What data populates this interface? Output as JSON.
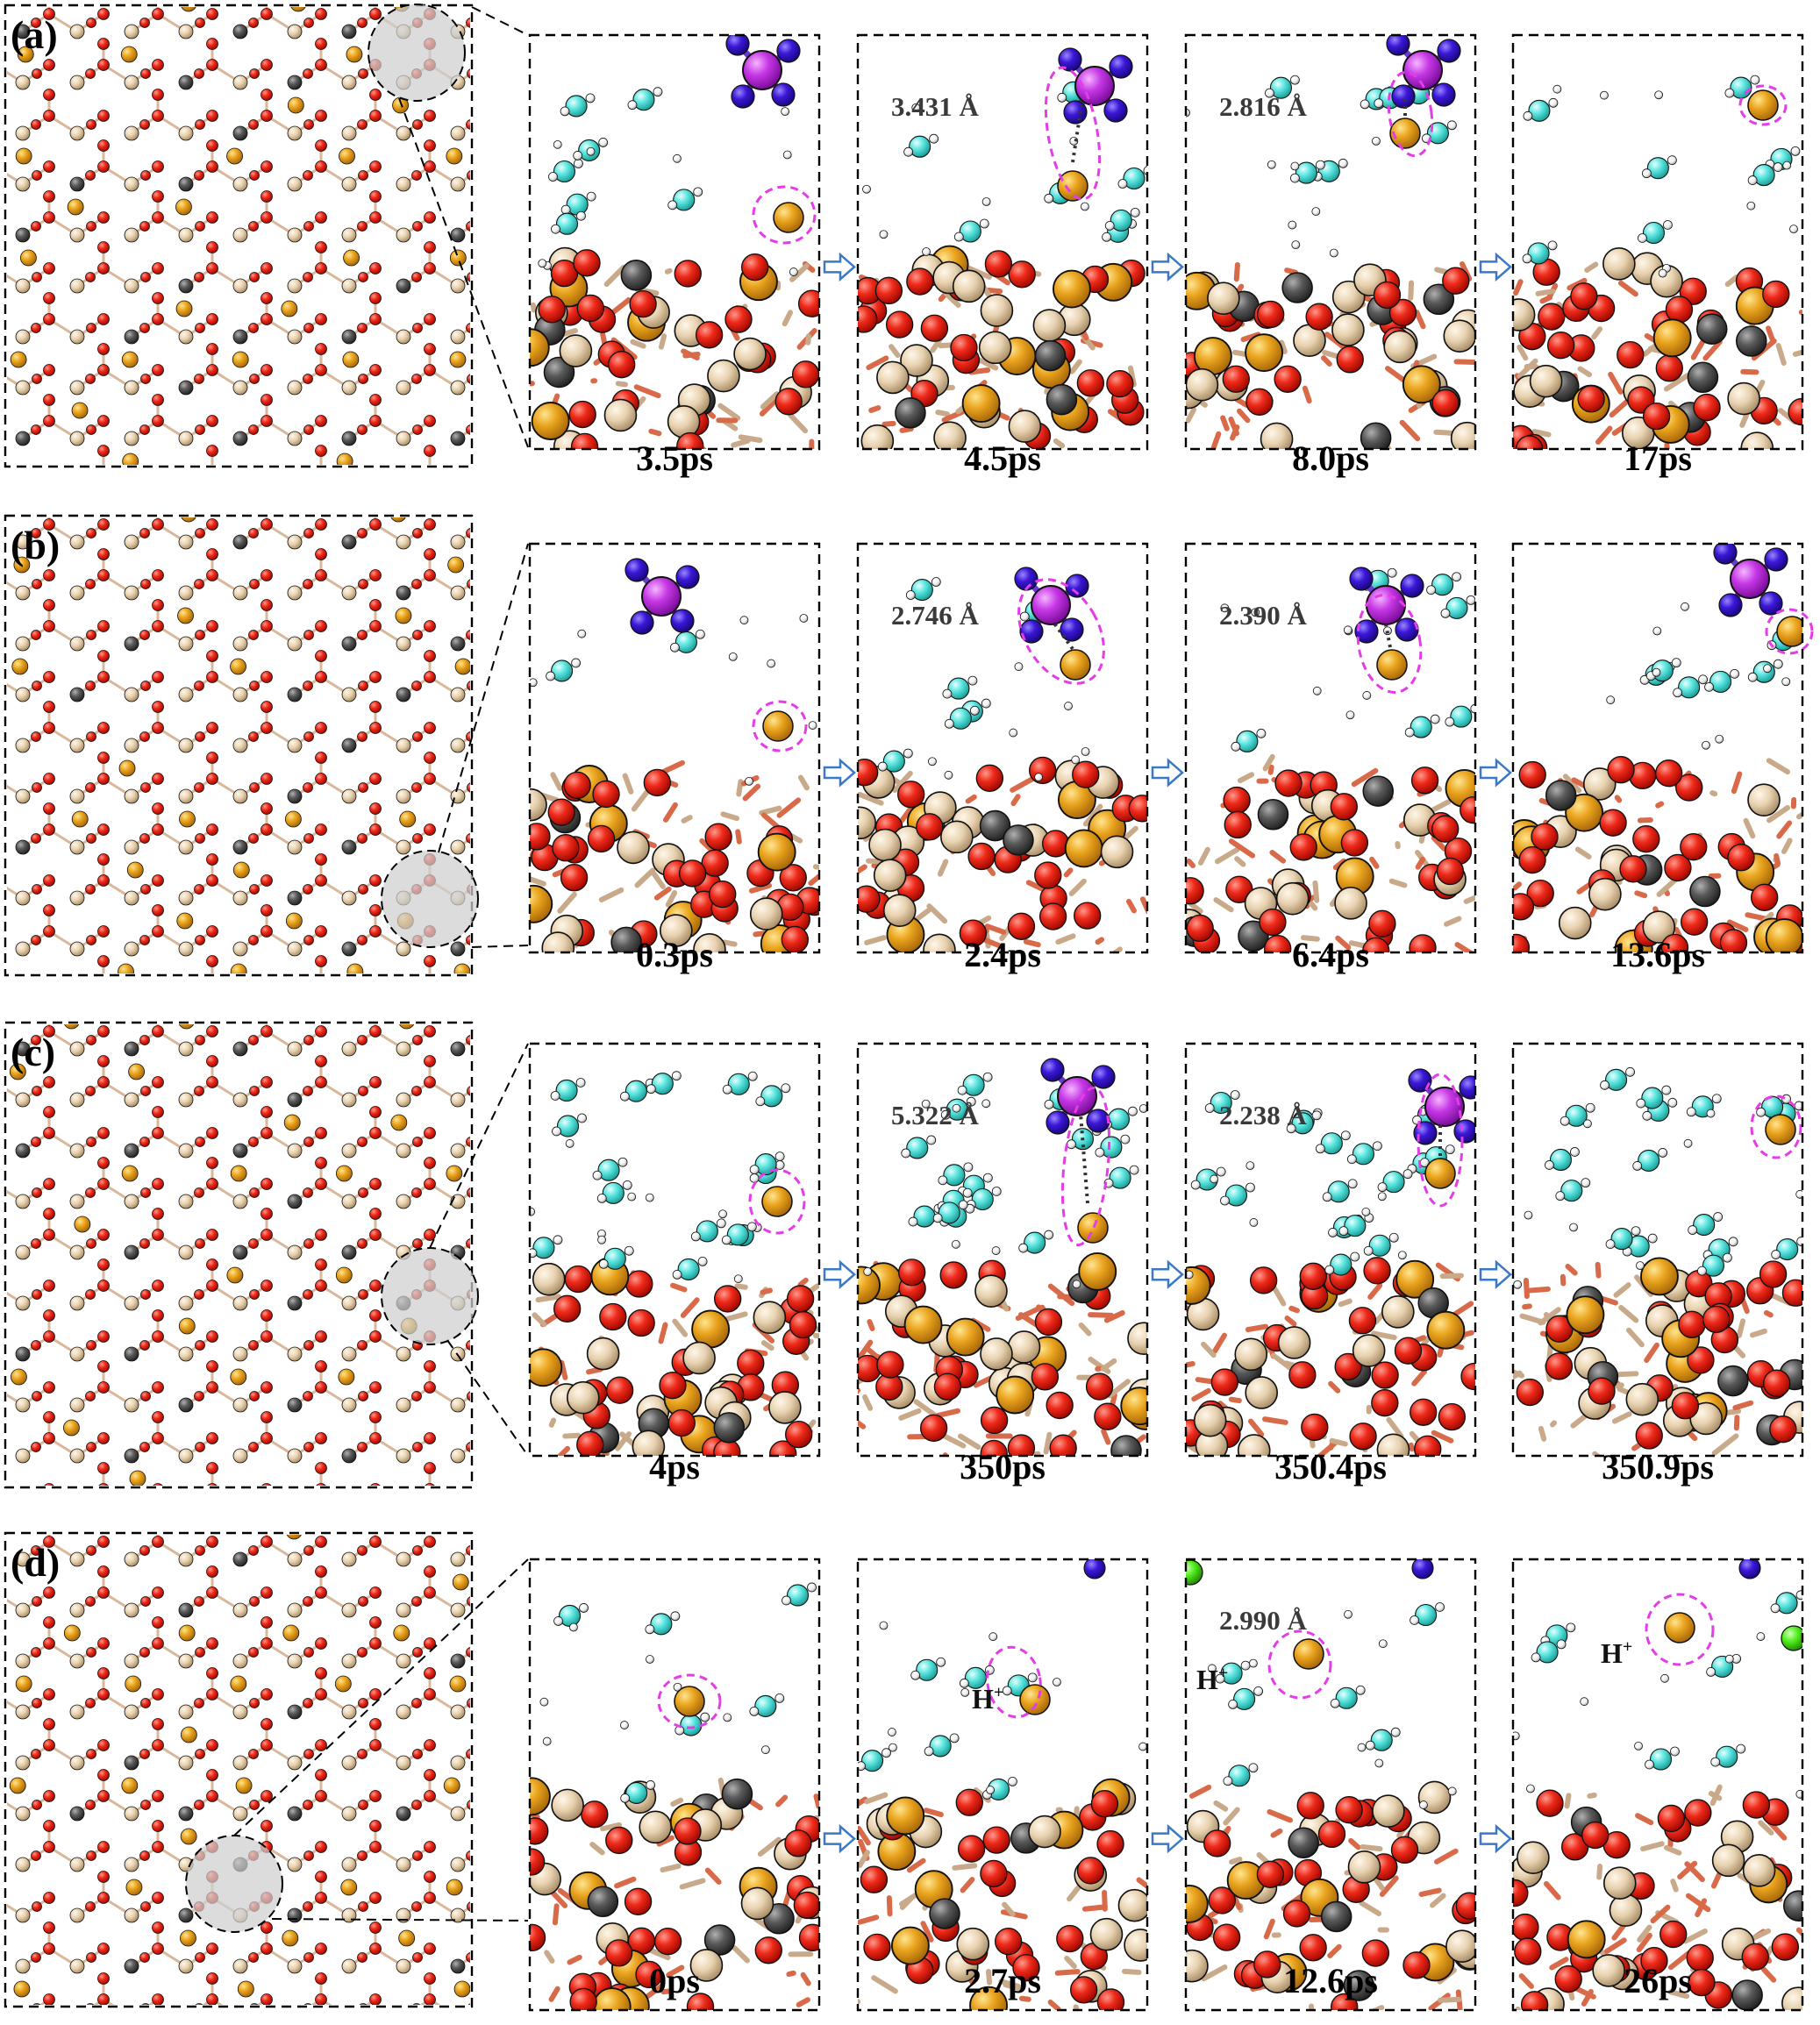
{
  "panels": [
    {
      "label": "(a)",
      "frames": [
        {
          "time": "3.5ps",
          "distance": ""
        },
        {
          "time": "4.5ps",
          "distance": "3.431 Å"
        },
        {
          "time": "8.0ps",
          "distance": "2.816 Å"
        },
        {
          "time": "17ps",
          "distance": ""
        }
      ]
    },
    {
      "label": "(b)",
      "frames": [
        {
          "time": "0.3ps",
          "distance": ""
        },
        {
          "time": "2.4ps",
          "distance": "2.746 Å"
        },
        {
          "time": "6.4ps",
          "distance": "2.390 Å"
        },
        {
          "time": "13.6ps",
          "distance": ""
        }
      ]
    },
    {
      "label": "(c)",
      "frames": [
        {
          "time": "4ps",
          "distance": ""
        },
        {
          "time": "350ps",
          "distance": "5.322 Å"
        },
        {
          "time": "350.4ps",
          "distance": "2.238 Å"
        },
        {
          "time": "350.9ps",
          "distance": ""
        }
      ]
    },
    {
      "label": "(d)",
      "frames": [
        {
          "time": "0ps",
          "distance": ""
        },
        {
          "time": "2.7ps",
          "distance": ""
        },
        {
          "time": "12.6ps",
          "distance": "2.990 Å"
        },
        {
          "time": "26ps",
          "distance": ""
        }
      ]
    }
  ],
  "proton_label": "H",
  "proton_charge": "+",
  "atom_colors": {
    "oxygen": "#e8140c",
    "silicon": "#e6cfad",
    "aluminum_dark": "#555555",
    "cation_gold": "#e8a21c",
    "ammonium_n": "#3b17d6",
    "ammonium_center": "#c637e6",
    "water_h_cyan": "#5de6e0",
    "hydrogen_white": "#f4f4f4",
    "chloride_green": "#52ee1e",
    "highlight_ring": "#e43ce6",
    "arrow": "#3a78c8"
  }
}
